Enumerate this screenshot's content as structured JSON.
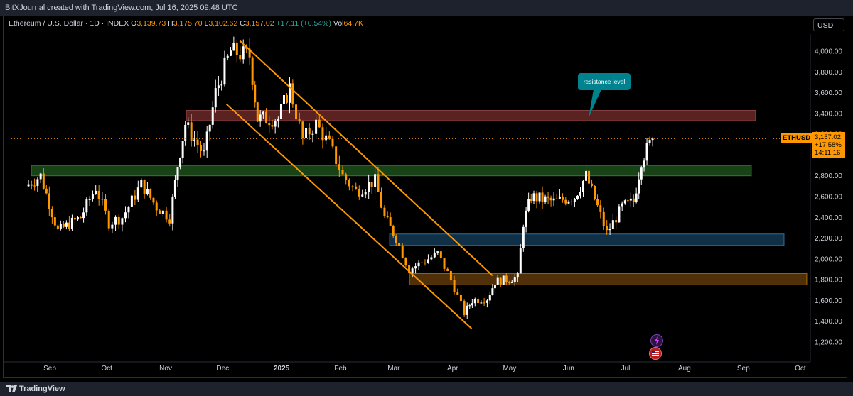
{
  "header": {
    "credit": "BitXJournal created with TradingView.com, Jul 16, 2025 09:48 UTC"
  },
  "legend": {
    "symbol": "Ethereum / U.S. Dollar · 1D · INDEX",
    "o_label": "O",
    "o": "3,139.73",
    "h_label": "H",
    "h": "3,175.70",
    "l_label": "L",
    "l": "3,102.62",
    "c_label": "C",
    "c": "3,157.02",
    "change": "+17.11 (+0.54%)",
    "vol_label": "Vol",
    "vol": "64.7K"
  },
  "currency": "USD",
  "price_tag": {
    "symbol": "ETHUSD",
    "price": "3,157.02",
    "pct": "+17.58%",
    "countdown": "14:11:16"
  },
  "annotation": {
    "text": "resistance level"
  },
  "footer": {
    "brand": "TradingView"
  },
  "colors": {
    "up": "#ffffff",
    "down": "#ff9800",
    "accent": "#ff9800",
    "resistance_zone": "#8b3a3a",
    "green_zone": "#2e6b2e",
    "blue_zone": "#1f4a6e",
    "orange_zone": "#7a4a0f",
    "callout": "#00838f"
  },
  "chart_data": {
    "type": "candlestick",
    "series_name": "ETHUSD",
    "y_ticks": [
      "4,000.00",
      "3,800.00",
      "3,600.00",
      "3,400.00",
      "3,200.00",
      "3,000.00",
      "2,800.00",
      "2,600.00",
      "2,400.00",
      "2,200.00",
      "2,000.00",
      "1,800.00",
      "1,600.00",
      "1,400.00",
      "1,200.00"
    ],
    "y_tick_values": [
      4000,
      3800,
      3600,
      3400,
      3200,
      3000,
      2800,
      2600,
      2400,
      2200,
      2000,
      1800,
      1600,
      1400,
      1200
    ],
    "x_ticks": [
      "Sep",
      "Oct",
      "Nov",
      "Dec",
      "2025",
      "Feb",
      "Mar",
      "Apr",
      "May",
      "Jun",
      "Jul",
      "Aug",
      "Sep",
      "Oct"
    ],
    "ylim": [
      1100,
      4150
    ],
    "grid": false,
    "zones": [
      {
        "name": "resistance",
        "from": 3330,
        "to": 3430
      },
      {
        "name": "green",
        "from": 2800,
        "to": 2900
      },
      {
        "name": "blue",
        "from": 2130,
        "to": 2240
      },
      {
        "name": "orange",
        "from": 1750,
        "to": 1860
      }
    ],
    "channel": {
      "upper": [
        {
          "date": "2024-12-10",
          "price": 4100
        },
        {
          "date": "2025-04-22",
          "price": 1840
        }
      ],
      "lower": [
        {
          "date": "2024-12-03",
          "price": 3490
        },
        {
          "date": "2025-04-11",
          "price": 1330
        }
      ]
    },
    "close_path": [
      {
        "date": "2024-08-20",
        "price": 2700
      },
      {
        "date": "2024-08-28",
        "price": 2800
      },
      {
        "date": "2024-09-06",
        "price": 2270
      },
      {
        "date": "2024-09-18",
        "price": 2400
      },
      {
        "date": "2024-09-26",
        "price": 2690
      },
      {
        "date": "2024-10-03",
        "price": 2350
      },
      {
        "date": "2024-10-10",
        "price": 2400
      },
      {
        "date": "2024-10-20",
        "price": 2720
      },
      {
        "date": "2024-10-28",
        "price": 2500
      },
      {
        "date": "2024-11-04",
        "price": 2400
      },
      {
        "date": "2024-11-08",
        "price": 2900
      },
      {
        "date": "2024-11-12",
        "price": 3300
      },
      {
        "date": "2024-11-22",
        "price": 3000
      },
      {
        "date": "2024-11-28",
        "price": 3600
      },
      {
        "date": "2024-12-06",
        "price": 4000
      },
      {
        "date": "2024-12-16",
        "price": 3950
      },
      {
        "date": "2024-12-20",
        "price": 3350
      },
      {
        "date": "2024-12-31",
        "price": 3350
      },
      {
        "date": "2025-01-06",
        "price": 3650
      },
      {
        "date": "2025-01-13",
        "price": 3150
      },
      {
        "date": "2025-01-20",
        "price": 3300
      },
      {
        "date": "2025-01-27",
        "price": 3100
      },
      {
        "date": "2025-02-03",
        "price": 2800
      },
      {
        "date": "2025-02-10",
        "price": 2650
      },
      {
        "date": "2025-02-20",
        "price": 2750
      },
      {
        "date": "2025-02-25",
        "price": 2400
      },
      {
        "date": "2025-03-03",
        "price": 2200
      },
      {
        "date": "2025-03-10",
        "price": 1900
      },
      {
        "date": "2025-03-20",
        "price": 2000
      },
      {
        "date": "2025-03-25",
        "price": 2050
      },
      {
        "date": "2025-04-01",
        "price": 1800
      },
      {
        "date": "2025-04-08",
        "price": 1480
      },
      {
        "date": "2025-04-12",
        "price": 1600
      },
      {
        "date": "2025-04-20",
        "price": 1620
      },
      {
        "date": "2025-04-24",
        "price": 1780
      },
      {
        "date": "2025-05-06",
        "price": 1820
      },
      {
        "date": "2025-05-09",
        "price": 2350
      },
      {
        "date": "2025-05-13",
        "price": 2600
      },
      {
        "date": "2025-05-25",
        "price": 2550
      },
      {
        "date": "2025-06-05",
        "price": 2600
      },
      {
        "date": "2025-06-11",
        "price": 2800
      },
      {
        "date": "2025-06-17",
        "price": 2500
      },
      {
        "date": "2025-06-22",
        "price": 2250
      },
      {
        "date": "2025-06-30",
        "price": 2500
      },
      {
        "date": "2025-07-06",
        "price": 2550
      },
      {
        "date": "2025-07-10",
        "price": 2950
      },
      {
        "date": "2025-07-16",
        "price": 3157
      }
    ]
  }
}
